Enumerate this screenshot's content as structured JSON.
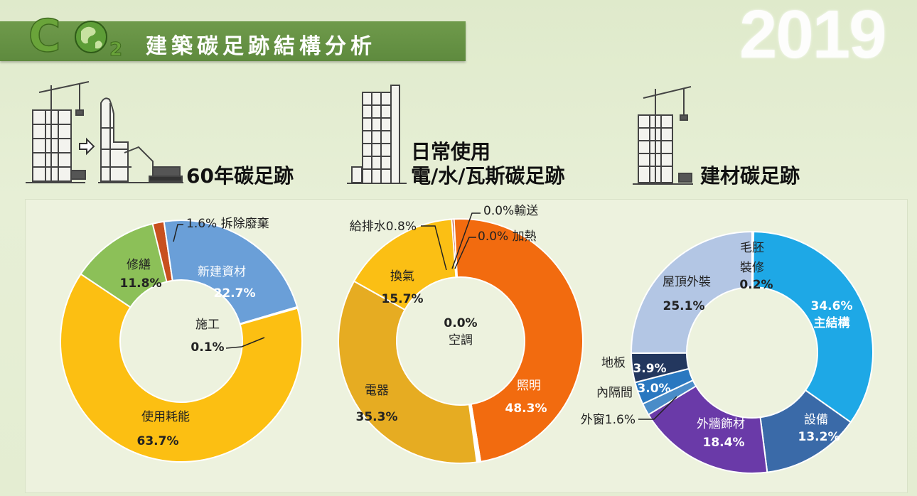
{
  "header": {
    "title": "建築碳足跡結構分析",
    "year": "2019",
    "logo_co": "C",
    "logo_sub": "2",
    "colors": {
      "bar": "#5e8a3e",
      "logo": "#6aa43a"
    }
  },
  "sections": {
    "lifecycle": "60年碳足跡",
    "operation_line1": "日常使用",
    "operation_line2": "電/水/瓦斯碳足跡",
    "materials": "建材碳足跡"
  },
  "chart_data": [
    {
      "type": "pie",
      "title": "60年碳足跡",
      "labels": [
        "拆除廢棄",
        "新建資材",
        "施工",
        "使用耗能",
        "修繕"
      ],
      "values": [
        1.6,
        22.7,
        0.1,
        63.7,
        11.8
      ],
      "value_labels": [
        "1.6%",
        "22.7%",
        "0.1%",
        "63.7%",
        "11.8%"
      ],
      "colors": [
        "#c8501e",
        "#6a9fd8",
        "#e6b43c",
        "#fcbf12",
        "#8cc058"
      ],
      "donut": true,
      "annotations": [
        {
          "text": "1.6% 拆除廢棄"
        },
        {
          "text": "新建資材",
          "value": "22.7%"
        },
        {
          "text": "施工",
          "value": "0.1%"
        },
        {
          "text": "使用耗能",
          "value": "63.7%"
        },
        {
          "text": "修繕",
          "value": "11.8%"
        }
      ]
    },
    {
      "type": "pie",
      "title": "日常使用 電/水/瓦斯碳足跡",
      "labels": [
        "給排水",
        "照明",
        "加熱",
        "輸送",
        "空調",
        "電器",
        "換氣"
      ],
      "values": [
        0.8,
        48.3,
        0.0,
        0.0,
        0.0,
        35.3,
        15.7
      ],
      "value_labels": [
        "0.8%",
        "48.3%",
        "0.0%",
        "0.0%",
        "0.0%",
        "35.3%",
        "15.7%"
      ],
      "colors": [
        "#b5351c",
        "#f26b0f",
        "#c9541c",
        "#a8401c",
        "#e0a41e",
        "#e6ac22",
        "#fbbf14"
      ],
      "donut": true,
      "annotations": [
        {
          "text": "給排水0.8%"
        },
        {
          "text": "0.0%輸送"
        },
        {
          "text": "0.0% 加熱"
        },
        {
          "text": "換氣",
          "value": "15.7%"
        },
        {
          "text": "空調",
          "value": "0.0%"
        },
        {
          "text": "電器",
          "value": "35.3%"
        },
        {
          "text": "照明",
          "value": "48.3%"
        }
      ]
    },
    {
      "type": "pie",
      "title": "建材碳足跡",
      "labels": [
        "毛胚裝修",
        "主結構",
        "設備",
        "外牆飾材",
        "外窗",
        "內隔間",
        "地板",
        "屋頂外裝"
      ],
      "values": [
        0.2,
        34.6,
        13.2,
        18.4,
        1.6,
        3.0,
        3.9,
        25.1
      ],
      "value_labels": [
        "0.2%",
        "34.6%",
        "13.2%",
        "18.4%",
        "1.6%",
        "3.0%",
        "3.9%",
        "25.1%"
      ],
      "colors": [
        "#9fb6d8",
        "#1ea8e6",
        "#3a6aa8",
        "#6a3aa8",
        "#4a8cc8",
        "#2a78c0",
        "#23375e",
        "#b3c6e4"
      ],
      "donut": true,
      "annotations": [
        {
          "text": "毛胚",
          "text2": "裝修",
          "value": "0.2%"
        },
        {
          "text": "主結構",
          "value": "34.6%"
        },
        {
          "text": "設備",
          "value": "13.2%"
        },
        {
          "text": "外牆飾材",
          "value": "18.4%"
        },
        {
          "text": "外窗1.6%"
        },
        {
          "text": "內隔間",
          "value": "3.0%"
        },
        {
          "text": "地板",
          "value": "3.9%"
        },
        {
          "text": "屋頂外裝",
          "value": "25.1%"
        }
      ]
    }
  ]
}
